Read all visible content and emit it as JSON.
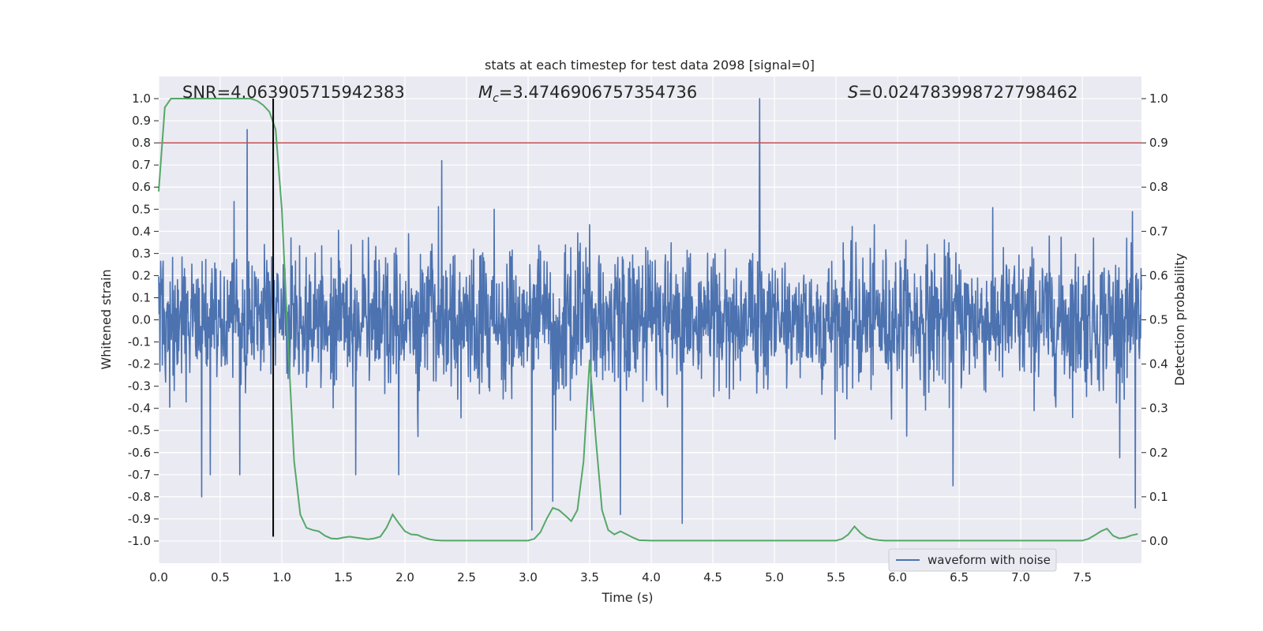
{
  "chart_data": {
    "type": "line",
    "title": "stats at each timestep for test data 2098 [signal=0]",
    "xlabel": "Time (s)",
    "ylabel_left": "Whitened strain",
    "ylabel_right": "Detection probability",
    "xlim": [
      0.0,
      7.98
    ],
    "ylim_left": [
      -1.1,
      1.1
    ],
    "ylim_right": [
      -0.05,
      1.05
    ],
    "x_ticks": [
      0.0,
      0.5,
      1.0,
      1.5,
      2.0,
      2.5,
      3.0,
      3.5,
      4.0,
      4.5,
      5.0,
      5.5,
      6.0,
      6.5,
      7.0,
      7.5
    ],
    "y_ticks_left": [
      -1.0,
      -0.9,
      -0.8,
      -0.7,
      -0.6,
      -0.5,
      -0.4,
      -0.3,
      -0.2,
      -0.1,
      0.0,
      0.1,
      0.2,
      0.3,
      0.4,
      0.5,
      0.6,
      0.7,
      0.8,
      0.9,
      1.0
    ],
    "y_ticks_right": [
      0.0,
      0.1,
      0.2,
      0.3,
      0.4,
      0.5,
      0.6,
      0.7,
      0.8,
      0.9,
      1.0
    ],
    "grid": true,
    "legend": {
      "entries": [
        "waveform with noise"
      ],
      "placement": "bottom-right"
    },
    "annotations": [
      {
        "label": "SNR",
        "text": "SNR=4.063905715942383"
      },
      {
        "label": "Mc",
        "symbol": "M",
        "subscript": "c",
        "text": "=3.4746906757354736"
      },
      {
        "label": "S",
        "symbol": "S",
        "text": "=0.024783998727798462"
      }
    ],
    "threshold_line": {
      "axis": "right",
      "value": 0.9,
      "color": "#c44e52"
    },
    "vertical_marker": {
      "x": 0.93,
      "y_range_left": [
        -0.98,
        1.0
      ],
      "color": "#000000"
    },
    "series": [
      {
        "name": "waveform with noise",
        "axis": "left",
        "color": "#4c72b0",
        "sample_rate_hz": 2048,
        "duration_s": 7.98,
        "max": 1.0,
        "min": -0.99,
        "typical_upper_envelope": 0.4,
        "typical_lower_envelope": -0.45,
        "peaks": [
          {
            "x": 0.35,
            "y": -0.8
          },
          {
            "x": 0.42,
            "y": -0.7
          },
          {
            "x": 0.66,
            "y": -0.7
          },
          {
            "x": 0.72,
            "y": 0.86
          },
          {
            "x": 1.6,
            "y": -0.7
          },
          {
            "x": 1.95,
            "y": -0.7
          },
          {
            "x": 2.3,
            "y": 0.72
          },
          {
            "x": 3.03,
            "y": -0.95
          },
          {
            "x": 3.2,
            "y": -0.82
          },
          {
            "x": 3.5,
            "y": 0.43
          },
          {
            "x": 3.75,
            "y": -0.88
          },
          {
            "x": 4.25,
            "y": -0.92
          },
          {
            "x": 4.88,
            "y": 1.0
          },
          {
            "x": 6.45,
            "y": -0.75
          },
          {
            "x": 7.93,
            "y": -0.85
          }
        ]
      },
      {
        "name": "",
        "axis": "right",
        "color": "#55a868",
        "x": [
          0.0,
          0.05,
          0.1,
          0.15,
          0.2,
          0.25,
          0.3,
          0.35,
          0.4,
          0.45,
          0.5,
          0.55,
          0.6,
          0.65,
          0.7,
          0.75,
          0.8,
          0.85,
          0.9,
          0.95,
          1.0,
          1.05,
          1.1,
          1.15,
          1.2,
          1.25,
          1.3,
          1.35,
          1.4,
          1.45,
          1.5,
          1.55,
          1.6,
          1.65,
          1.7,
          1.75,
          1.8,
          1.85,
          1.9,
          1.95,
          2.0,
          2.05,
          2.1,
          2.15,
          2.2,
          2.25,
          2.3,
          2.5,
          2.75,
          3.0,
          3.05,
          3.1,
          3.15,
          3.2,
          3.25,
          3.3,
          3.35,
          3.4,
          3.45,
          3.5,
          3.55,
          3.6,
          3.65,
          3.7,
          3.75,
          3.8,
          3.85,
          3.9,
          4.0,
          4.2,
          4.5,
          4.8,
          5.0,
          5.2,
          5.5,
          5.55,
          5.6,
          5.65,
          5.7,
          5.75,
          5.8,
          5.85,
          5.9,
          6.0,
          6.5,
          7.0,
          7.5,
          7.55,
          7.6,
          7.65,
          7.7,
          7.75,
          7.8,
          7.85,
          7.9,
          7.95
        ],
        "y": [
          0.79,
          0.98,
          1.0,
          1.0,
          1.0,
          1.0,
          1.0,
          1.0,
          1.0,
          1.0,
          1.0,
          1.0,
          1.0,
          1.0,
          1.0,
          1.0,
          0.995,
          0.985,
          0.97,
          0.93,
          0.75,
          0.45,
          0.18,
          0.06,
          0.03,
          0.025,
          0.022,
          0.012,
          0.006,
          0.005,
          0.008,
          0.01,
          0.008,
          0.006,
          0.004,
          0.006,
          0.01,
          0.03,
          0.06,
          0.04,
          0.022,
          0.015,
          0.014,
          0.008,
          0.004,
          0.002,
          0.001,
          0.001,
          0.001,
          0.001,
          0.005,
          0.02,
          0.05,
          0.075,
          0.07,
          0.058,
          0.045,
          0.07,
          0.18,
          0.41,
          0.23,
          0.07,
          0.025,
          0.015,
          0.022,
          0.015,
          0.008,
          0.002,
          0.001,
          0.001,
          0.001,
          0.001,
          0.001,
          0.001,
          0.001,
          0.005,
          0.015,
          0.033,
          0.018,
          0.008,
          0.004,
          0.002,
          0.001,
          0.001,
          0.001,
          0.001,
          0.001,
          0.005,
          0.013,
          0.022,
          0.028,
          0.012,
          0.006,
          0.008,
          0.013,
          0.016
        ]
      }
    ]
  }
}
